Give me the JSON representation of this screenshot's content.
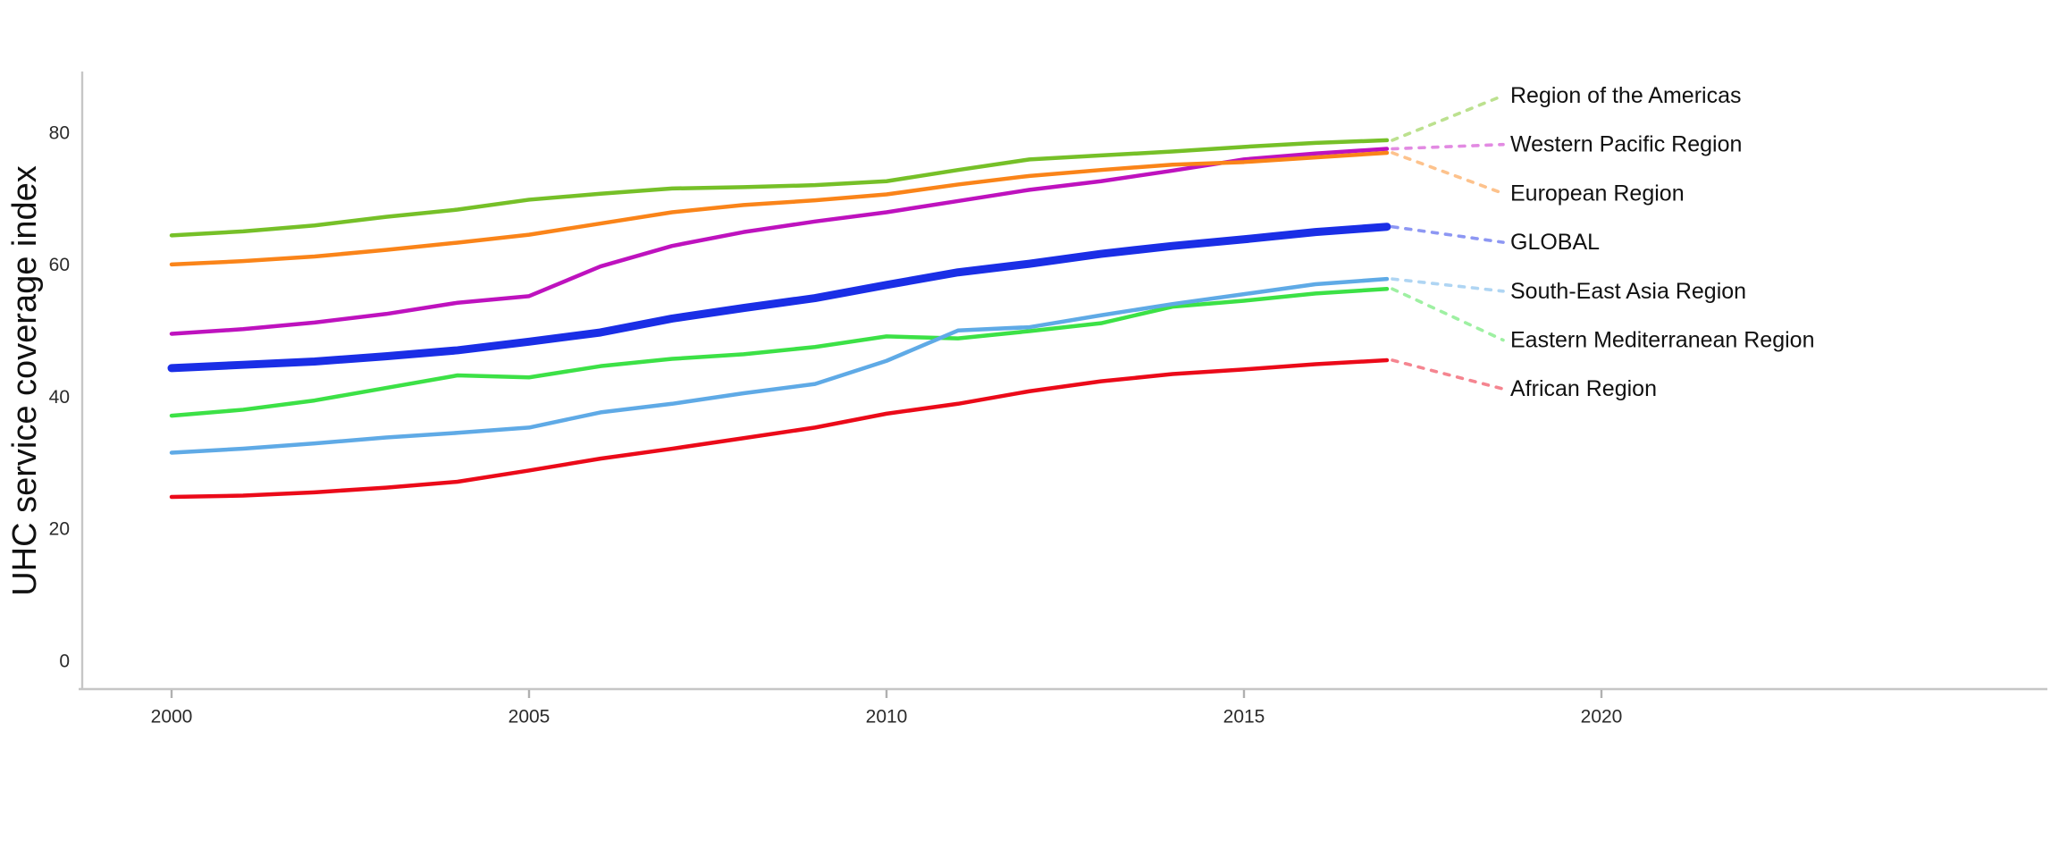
{
  "chart_data": {
    "type": "line",
    "title": "",
    "xlabel": "",
    "ylabel": "UHC service coverage index",
    "x": [
      2000,
      2001,
      2002,
      2003,
      2004,
      2005,
      2006,
      2007,
      2008,
      2009,
      2010,
      2011,
      2012,
      2013,
      2014,
      2015,
      2016,
      2017
    ],
    "x_ticks": [
      "2000",
      "2005",
      "2010",
      "2015",
      "2020"
    ],
    "x_tick_values": [
      2000,
      2005,
      2010,
      2015,
      2020
    ],
    "y_ticks": [
      "0",
      "20",
      "40",
      "60",
      "80"
    ],
    "y_tick_values": [
      0,
      20,
      40,
      60,
      80
    ],
    "ylim": [
      0,
      87
    ],
    "xlim": [
      1998.75,
      2026.4
    ],
    "grid": false,
    "legend_position": "right-direct-labels",
    "axis_color": "#c6c6c6",
    "tick_color": "#b0b0b0",
    "series": [
      {
        "name": "Region of the Americas",
        "color": "#76c028",
        "light_color": "#bce18f",
        "width": 4.5,
        "values": [
          64.5,
          65.1,
          66.0,
          67.3,
          68.4,
          69.9,
          70.8,
          71.6,
          71.8,
          72.1,
          72.7,
          74.4,
          76.0,
          76.6,
          77.2,
          77.9,
          78.5,
          78.9
        ]
      },
      {
        "name": "Western Pacific Region",
        "color": "#be12be",
        "light_color": "#e28ae2",
        "width": 4.5,
        "values": [
          49.6,
          50.3,
          51.3,
          52.6,
          54.3,
          55.3,
          59.8,
          62.9,
          65.0,
          66.6,
          68.0,
          69.7,
          71.4,
          72.7,
          74.3,
          76.0,
          76.9,
          77.6
        ]
      },
      {
        "name": "European Region",
        "color": "#fa8419",
        "light_color": "#fdc28c",
        "width": 4.5,
        "values": [
          60.1,
          60.6,
          61.3,
          62.3,
          63.4,
          64.6,
          66.3,
          68.0,
          69.1,
          69.8,
          70.7,
          72.2,
          73.5,
          74.4,
          75.2,
          75.6,
          76.3,
          77.0
        ]
      },
      {
        "name": "GLOBAL",
        "color": "#1a2ee6",
        "light_color": "#8d97f3",
        "width": 9,
        "values": [
          44.4,
          44.9,
          45.4,
          46.2,
          47.1,
          48.4,
          49.8,
          51.9,
          53.5,
          55.0,
          57.0,
          58.9,
          60.2,
          61.7,
          62.9,
          63.9,
          65.0,
          65.8
        ]
      },
      {
        "name": "South-East Asia Region",
        "color": "#5faae6",
        "light_color": "#afd5f3",
        "width": 4.5,
        "values": [
          31.6,
          32.2,
          33.0,
          33.9,
          34.6,
          35.4,
          37.7,
          39.0,
          40.6,
          42.0,
          45.5,
          50.1,
          50.6,
          52.4,
          54.1,
          55.6,
          57.1,
          57.9
        ]
      },
      {
        "name": "Eastern Mediterranean Region",
        "color": "#3ce146",
        "light_color": "#9ef0a2",
        "width": 4.5,
        "values": [
          37.2,
          38.1,
          39.5,
          41.4,
          43.3,
          43.0,
          44.7,
          45.8,
          46.5,
          47.6,
          49.2,
          48.9,
          50.0,
          51.2,
          53.7,
          54.6,
          55.7,
          56.4
        ]
      },
      {
        "name": "African Region",
        "color": "#eb0a19",
        "light_color": "#f58590",
        "width": 4.5,
        "values": [
          24.9,
          25.1,
          25.6,
          26.3,
          27.2,
          28.9,
          30.7,
          32.2,
          33.8,
          35.4,
          37.5,
          39.0,
          40.9,
          42.4,
          43.5,
          44.2,
          45.0,
          45.6
        ]
      }
    ]
  }
}
